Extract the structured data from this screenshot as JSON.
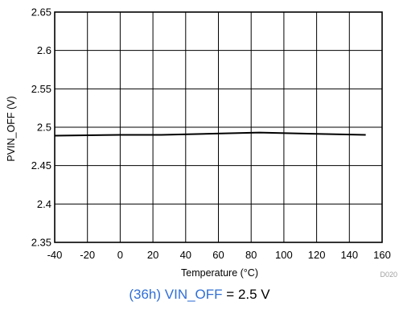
{
  "chart_data": {
    "type": "line",
    "xlabel": "Temperature (°C)",
    "ylabel": "PVIN_OFF (V)",
    "xlim": [
      -40,
      160
    ],
    "ylim": [
      2.35,
      2.65
    ],
    "xticks": [
      -40,
      -20,
      0,
      20,
      40,
      60,
      80,
      100,
      120,
      140,
      160
    ],
    "yticks": [
      2.35,
      2.4,
      2.45,
      2.5,
      2.55,
      2.6,
      2.65
    ],
    "grid": true,
    "series": [
      {
        "x": [
          -40,
          0,
          25,
          85,
          150
        ],
        "y": [
          2.489,
          2.49,
          2.49,
          2.493,
          2.49
        ],
        "color": "#000000"
      }
    ],
    "figure_code": "D020"
  },
  "caption": {
    "register": "(36h) VIN_OFF",
    "equals": " = ",
    "value": "2.5 V"
  },
  "colors": {
    "caption_register": "#2f6fd6",
    "grid": "#000000",
    "line": "#000000"
  }
}
